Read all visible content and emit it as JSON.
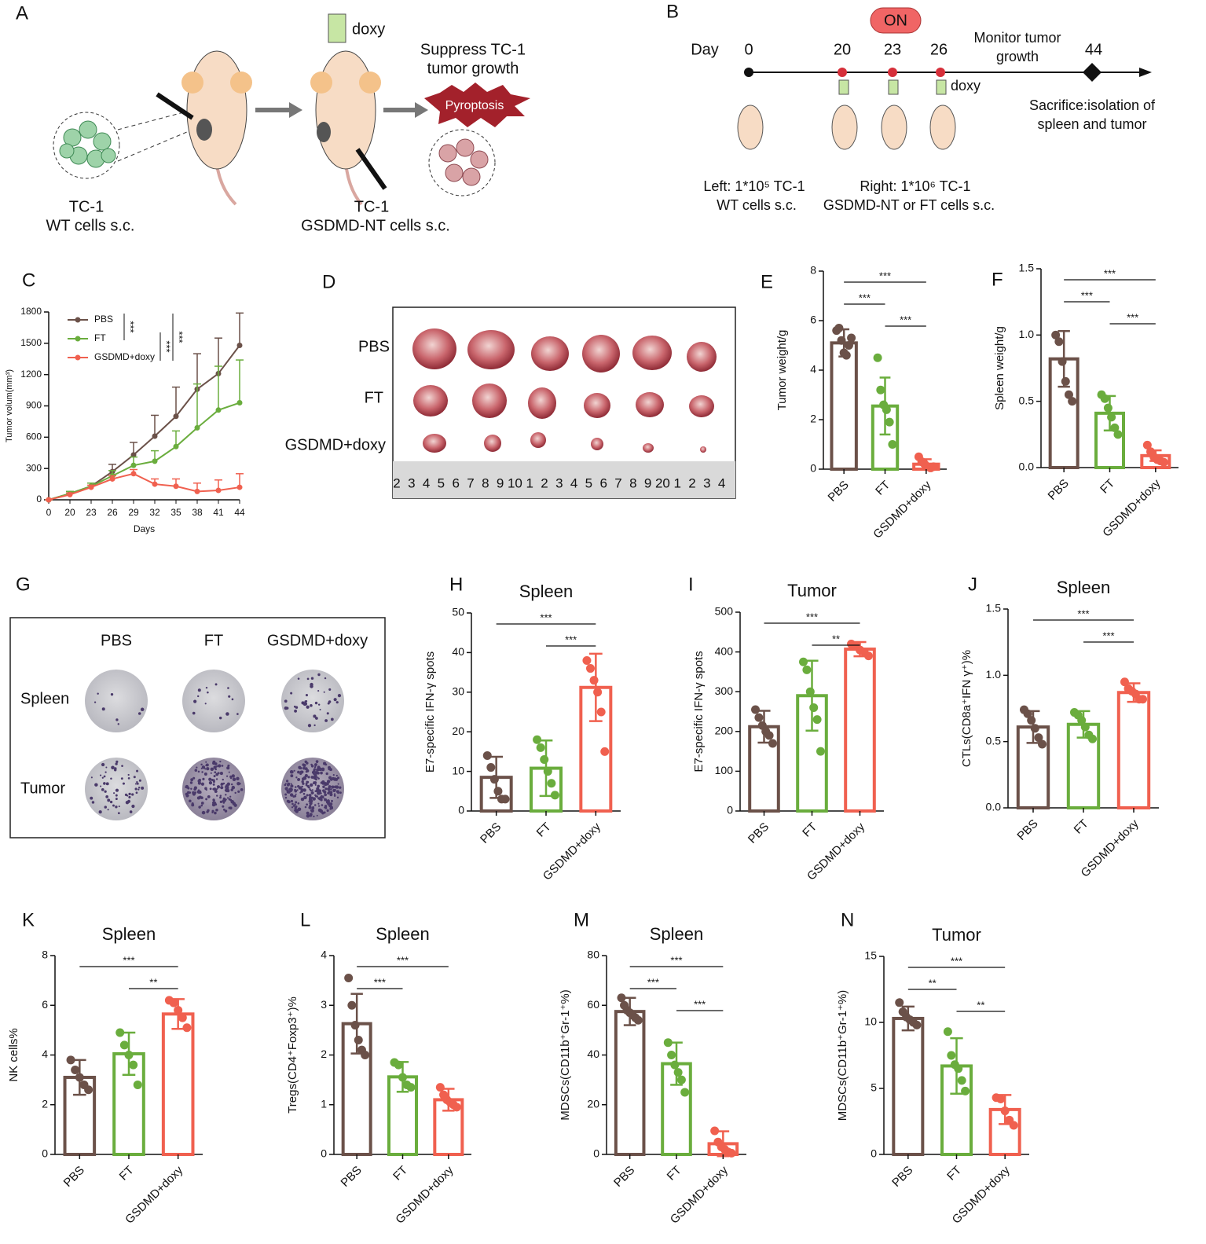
{
  "panel_a": {
    "label": "A",
    "doxy": "doxy",
    "suppress": [
      "Suppress TC-1",
      "tumor growth"
    ],
    "burst": "Pyroptosis",
    "left_caption": [
      "TC-1",
      "WT cells s.c."
    ],
    "right_caption": [
      "TC-1",
      "GSDMD-NT cells s.c."
    ]
  },
  "panel_b": {
    "label": "B",
    "switch": "ON",
    "day": "Day",
    "days": [
      0,
      20,
      23,
      26,
      44
    ],
    "monitor": [
      "Monitor tumor",
      "growth"
    ],
    "doxy": "doxy",
    "sacrifice": [
      "Sacrifice:isolation of",
      "spleen and tumor"
    ],
    "left": [
      "Left: 1*10⁵ TC-1",
      "WT cells s.c."
    ],
    "right": [
      "Right:  1*10⁶ TC-1",
      "GSDMD-NT or FT cells s.c."
    ]
  },
  "panel_d": {
    "label": "D",
    "rows": [
      "PBS",
      "FT",
      "GSDMD+doxy"
    ],
    "ruler": [
      "2",
      "3",
      "4",
      "5",
      "6",
      "7",
      "8",
      "9",
      "10",
      "1",
      "2",
      "3",
      "4",
      "5",
      "6",
      "7",
      "8",
      "9",
      "20",
      "1",
      "2",
      "3",
      "4"
    ]
  },
  "panel_g": {
    "label": "G",
    "columns": [
      "PBS",
      "FT",
      "GSDMD+doxy"
    ],
    "rows": [
      "Spleen",
      "Tumor"
    ]
  },
  "chart_data": [
    {
      "panel": "C",
      "type": "line",
      "xlabel": "Days",
      "ylabel": "Tumor volum(mm³)",
      "categories": [
        0,
        20,
        23,
        26,
        29,
        32,
        35,
        38,
        41,
        44
      ],
      "ylim": [
        0,
        1800
      ],
      "yticks": [
        0,
        300,
        600,
        900,
        1200,
        1500,
        1800
      ],
      "series": [
        {
          "name": "PBS",
          "color": "#6b5149",
          "values": [
            0,
            60,
            130,
            270,
            430,
            610,
            800,
            1060,
            1210,
            1480
          ],
          "errors": [
            0,
            20,
            30,
            70,
            120,
            200,
            280,
            340,
            340,
            310
          ]
        },
        {
          "name": "FT",
          "color": "#6aad3d",
          "values": [
            0,
            60,
            130,
            230,
            330,
            370,
            510,
            690,
            860,
            930
          ],
          "errors": [
            0,
            20,
            30,
            50,
            80,
            100,
            150,
            420,
            420,
            410
          ]
        },
        {
          "name": "GSDMD+doxy",
          "color": "#f0604f",
          "values": [
            0,
            50,
            120,
            200,
            250,
            150,
            130,
            80,
            90,
            120
          ],
          "errors": [
            0,
            15,
            20,
            30,
            40,
            50,
            70,
            80,
            100,
            130
          ]
        }
      ],
      "annotations": [
        "***",
        "***",
        "***"
      ]
    },
    {
      "panel": "E",
      "type": "bar",
      "ylabel": "Tumor weight/g",
      "categories": [
        "PBS",
        "FT",
        "GSDMD+doxy"
      ],
      "colors": [
        "#6b5149",
        "#6aad3d",
        "#f0604f"
      ],
      "values": [
        5.1,
        2.55,
        0.2
      ],
      "errors": [
        0.55,
        1.15,
        0.2
      ],
      "points": [
        [
          5.6,
          5.7,
          5.2,
          4.7,
          4.6,
          5.0,
          5.3
        ],
        [
          4.5,
          3.2,
          2.6,
          2.4,
          1.9,
          1.0
        ],
        [
          0.5,
          0.3,
          0.2,
          0.1,
          0.05,
          0.1
        ]
      ],
      "ylim": [
        0,
        8
      ],
      "yticks": [
        0,
        2,
        4,
        6,
        8
      ],
      "brackets": [
        {
          "between": [
            "PBS",
            "GSDMD+doxy"
          ],
          "label": "***"
        },
        {
          "between": [
            "PBS",
            "FT"
          ],
          "label": "***"
        },
        {
          "between": [
            "FT",
            "GSDMD+doxy"
          ],
          "label": "***"
        }
      ]
    },
    {
      "panel": "F",
      "type": "bar",
      "ylabel": "Spleen weight/g",
      "categories": [
        "PBS",
        "FT",
        "GSDMD+doxy"
      ],
      "colors": [
        "#6b5149",
        "#6aad3d",
        "#f0604f"
      ],
      "values": [
        0.82,
        0.41,
        0.09
      ],
      "errors": [
        0.21,
        0.13,
        0.04
      ],
      "points": [
        [
          1.0,
          0.95,
          0.8,
          0.65,
          0.55,
          0.5
        ],
        [
          0.55,
          0.52,
          0.45,
          0.38,
          0.3,
          0.25
        ],
        [
          0.17,
          0.12,
          0.08,
          0.06,
          0.05,
          0.04
        ]
      ],
      "ylim": [
        0,
        1.5
      ],
      "yticks": [
        {
          "value": 0,
          "label": "0.0"
        },
        0.5,
        {
          "value": 1,
          "label": "1.0"
        },
        1.5
      ],
      "brackets": [
        {
          "between": [
            "PBS",
            "GSDMD+doxy"
          ],
          "label": "***"
        },
        {
          "between": [
            "PBS",
            "FT"
          ],
          "label": "***"
        },
        {
          "between": [
            "FT",
            "GSDMD+doxy"
          ],
          "label": "***"
        }
      ]
    },
    {
      "panel": "H",
      "type": "bar",
      "title": "Spleen",
      "ylabel": "E7-specific IFN-γ spots",
      "categories": [
        "PBS",
        "FT",
        "GSDMD+doxy"
      ],
      "colors": [
        "#6b5149",
        "#6aad3d",
        "#f0604f"
      ],
      "values": [
        8.5,
        10.8,
        31.2
      ],
      "errors": [
        5.2,
        7,
        8.5
      ],
      "points": [
        [
          14,
          11,
          8,
          5,
          3,
          3
        ],
        [
          18,
          16,
          13,
          10,
          7,
          4
        ],
        [
          38,
          36,
          33,
          30,
          25,
          15
        ]
      ],
      "ylim": [
        0,
        50
      ],
      "yticks": [
        0,
        10,
        20,
        30,
        40,
        50
      ],
      "brackets": [
        {
          "between": [
            "PBS",
            "GSDMD+doxy"
          ],
          "label": "***"
        },
        {
          "between": [
            "FT",
            "GSDMD+doxy"
          ],
          "label": "***"
        }
      ]
    },
    {
      "panel": "I",
      "type": "bar",
      "title": "Tumor",
      "ylabel": "E7-specific IFN-γ spots",
      "categories": [
        "PBS",
        "FT",
        "GSDMD+doxy"
      ],
      "colors": [
        "#6b5149",
        "#6aad3d",
        "#f0604f"
      ],
      "values": [
        212,
        290,
        407
      ],
      "errors": [
        40,
        88,
        18
      ],
      "points": [
        [
          255,
          235,
          215,
          200,
          190,
          170
        ],
        [
          375,
          355,
          300,
          260,
          230,
          150
        ],
        [
          420,
          415,
          405,
          400,
          390
        ]
      ],
      "ylim": [
        0,
        500
      ],
      "yticks": [
        0,
        100,
        200,
        300,
        400,
        500
      ],
      "brackets": [
        {
          "between": [
            "PBS",
            "GSDMD+doxy"
          ],
          "label": "***"
        },
        {
          "between": [
            "FT",
            "GSDMD+doxy"
          ],
          "label": "**"
        }
      ]
    },
    {
      "panel": "J",
      "type": "bar",
      "title": "Spleen",
      "ylabel": "CTLs(CD8a⁺IFN γ⁺)%",
      "categories": [
        "PBS",
        "FT",
        "GSDMD+doxy"
      ],
      "colors": [
        "#6b5149",
        "#6aad3d",
        "#f0604f"
      ],
      "values": [
        0.61,
        0.63,
        0.87
      ],
      "errors": [
        0.12,
        0.1,
        0.07
      ],
      "points": [
        [
          0.74,
          0.71,
          0.66,
          0.6,
          0.53,
          0.48
        ],
        [
          0.72,
          0.7,
          0.66,
          0.61,
          0.55,
          0.52
        ],
        [
          0.95,
          0.9,
          0.88,
          0.86,
          0.82,
          0.82
        ]
      ],
      "ylim": [
        0,
        1.5
      ],
      "yticks": [
        {
          "value": 0,
          "label": "0.0"
        },
        0.5,
        {
          "value": 1,
          "label": "1.0"
        },
        1.5
      ],
      "brackets": [
        {
          "between": [
            "PBS",
            "GSDMD+doxy"
          ],
          "label": "***"
        },
        {
          "between": [
            "FT",
            "GSDMD+doxy"
          ],
          "label": "***"
        }
      ]
    },
    {
      "panel": "K",
      "type": "bar",
      "title": "Spleen",
      "ylabel": "NK cells%",
      "categories": [
        "PBS",
        "FT",
        "GSDMD+doxy"
      ],
      "colors": [
        "#6b5149",
        "#6aad3d",
        "#f0604f"
      ],
      "values": [
        3.1,
        4.05,
        5.65
      ],
      "errors": [
        0.7,
        0.85,
        0.6
      ],
      "points": [
        [
          3.8,
          3.4,
          3.1,
          2.8,
          2.6
        ],
        [
          4.9,
          4.4,
          4.0,
          3.6,
          2.8
        ],
        [
          6.2,
          6.1,
          5.8,
          5.5,
          5.1
        ]
      ],
      "ylim": [
        0,
        8
      ],
      "yticks": [
        0,
        2,
        4,
        6,
        8
      ],
      "brackets": [
        {
          "between": [
            "PBS",
            "GSDMD+doxy"
          ],
          "label": "***"
        },
        {
          "between": [
            "FT",
            "GSDMD+doxy"
          ],
          "label": "**"
        }
      ]
    },
    {
      "panel": "L",
      "type": "bar",
      "title": "Spleen",
      "ylabel": "Tregs(CD4⁺Foxp3⁺)%",
      "categories": [
        "PBS",
        "FT",
        "GSDMD+doxy"
      ],
      "colors": [
        "#6b5149",
        "#6aad3d",
        "#f0604f"
      ],
      "values": [
        2.63,
        1.56,
        1.1
      ],
      "errors": [
        0.6,
        0.3,
        0.22
      ],
      "points": [
        [
          3.55,
          3.0,
          2.6,
          2.3,
          2.1,
          2.0
        ],
        [
          1.85,
          1.8,
          1.55,
          1.4,
          1.35
        ],
        [
          1.35,
          1.2,
          1.1,
          1.05,
          1.0,
          0.95
        ]
      ],
      "ylim": [
        0,
        4
      ],
      "yticks": [
        0,
        1,
        2,
        3,
        4
      ],
      "brackets": [
        {
          "between": [
            "PBS",
            "GSDMD+doxy"
          ],
          "label": "***"
        },
        {
          "between": [
            "PBS",
            "FT"
          ],
          "label": "***"
        }
      ]
    },
    {
      "panel": "M",
      "type": "bar",
      "title": "Spleen",
      "ylabel": "MDSCs(CD11b⁺Gr-1⁺%)",
      "categories": [
        "PBS",
        "FT",
        "GSDMD+doxy"
      ],
      "colors": [
        "#6b5149",
        "#6aad3d",
        "#f0604f"
      ],
      "values": [
        57.5,
        36.5,
        4.3
      ],
      "errors": [
        5.5,
        8.5,
        5
      ],
      "points": [
        [
          63,
          60,
          58,
          57,
          56,
          55,
          54
        ],
        [
          45,
          40,
          36,
          33,
          30,
          25
        ],
        [
          9.5,
          5,
          3,
          2,
          1,
          0.5
        ]
      ],
      "ylim": [
        0,
        80
      ],
      "yticks": [
        0,
        20,
        40,
        60,
        80
      ],
      "brackets": [
        {
          "between": [
            "PBS",
            "GSDMD+doxy"
          ],
          "label": "***"
        },
        {
          "between": [
            "PBS",
            "FT"
          ],
          "label": "***"
        },
        {
          "between": [
            "FT",
            "GSDMD+doxy"
          ],
          "label": "***"
        }
      ]
    },
    {
      "panel": "N",
      "type": "bar",
      "title": "Tumor",
      "ylabel": "MDSCs(CD11b⁺Gr-1⁺%)",
      "categories": [
        "PBS",
        "FT",
        "GSDMD+doxy"
      ],
      "colors": [
        "#6b5149",
        "#6aad3d",
        "#f0604f"
      ],
      "values": [
        10.3,
        6.7,
        3.4
      ],
      "errors": [
        0.9,
        2.1,
        1.1
      ],
      "points": [
        [
          11.5,
          10.8,
          10.4,
          10.2,
          10,
          9.8
        ],
        [
          9.3,
          7.5,
          6.8,
          6.5,
          5.6,
          4.8
        ],
        [
          4.3,
          4.2,
          3.3,
          2.6,
          2.2
        ]
      ],
      "ylim": [
        0,
        15
      ],
      "yticks": [
        0,
        5,
        10,
        15
      ],
      "brackets": [
        {
          "between": [
            "PBS",
            "GSDMD+doxy"
          ],
          "label": "***"
        },
        {
          "between": [
            "PBS",
            "FT"
          ],
          "label": "**"
        },
        {
          "between": [
            "FT",
            "GSDMD+doxy"
          ],
          "label": "**"
        }
      ]
    }
  ]
}
